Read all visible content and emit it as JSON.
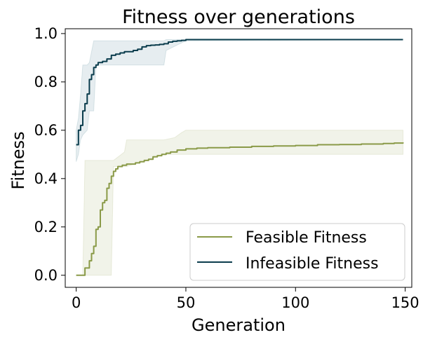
{
  "chart_data": {
    "type": "line",
    "title": "Fitness over generations",
    "xlabel": "Generation",
    "ylabel": "Fitness",
    "xlim": [
      -5,
      153
    ],
    "ylim": [
      -0.05,
      1.02
    ],
    "xticks": [
      0,
      50,
      100,
      150
    ],
    "yticks": [
      0.0,
      0.2,
      0.4,
      0.6,
      0.8,
      1.0
    ],
    "xtick_labels": [
      "0",
      "50",
      "100",
      "150"
    ],
    "ytick_labels": [
      "0.0",
      "0.2",
      "0.4",
      "0.6",
      "0.8",
      "1.0"
    ],
    "grid": false,
    "legend_position": "lower-right",
    "series": [
      {
        "name": "Feasible Fitness",
        "color": "#8a9a48",
        "band_color": "#8a9a48",
        "points": [
          [
            0,
            0
          ],
          [
            3,
            0
          ],
          [
            4,
            0.03
          ],
          [
            5,
            0.03
          ],
          [
            6,
            0.06
          ],
          [
            7,
            0.09
          ],
          [
            8,
            0.12
          ],
          [
            9,
            0.19
          ],
          [
            10,
            0.2
          ],
          [
            11,
            0.27
          ],
          [
            12,
            0.3
          ],
          [
            13,
            0.31
          ],
          [
            14,
            0.36
          ],
          [
            15,
            0.38
          ],
          [
            16,
            0.41
          ],
          [
            17,
            0.43
          ],
          [
            18,
            0.44
          ],
          [
            19,
            0.45
          ],
          [
            21,
            0.455
          ],
          [
            23,
            0.46
          ],
          [
            25,
            0.46
          ],
          [
            27,
            0.465
          ],
          [
            29,
            0.47
          ],
          [
            31,
            0.475
          ],
          [
            33,
            0.48
          ],
          [
            35,
            0.49
          ],
          [
            37,
            0.495
          ],
          [
            39,
            0.5
          ],
          [
            41,
            0.505
          ],
          [
            43,
            0.51
          ],
          [
            46,
            0.518
          ],
          [
            50,
            0.523
          ],
          [
            55,
            0.526
          ],
          [
            60,
            0.528
          ],
          [
            70,
            0.53
          ],
          [
            80,
            0.533
          ],
          [
            90,
            0.535
          ],
          [
            100,
            0.537
          ],
          [
            110,
            0.54
          ],
          [
            120,
            0.541
          ],
          [
            130,
            0.543
          ],
          [
            140,
            0.545
          ],
          [
            145,
            0.547
          ],
          [
            149,
            0.55
          ]
        ],
        "band": [
          [
            0,
            0,
            0
          ],
          [
            3,
            0,
            0
          ],
          [
            4,
            0,
            0.475
          ],
          [
            16,
            0,
            0.475
          ],
          [
            17,
            0.45,
            0.475
          ],
          [
            22,
            0.45,
            0.51
          ],
          [
            23,
            0.45,
            0.56
          ],
          [
            40,
            0.5,
            0.56
          ],
          [
            45,
            0.5,
            0.57
          ],
          [
            48,
            0.5,
            0.59
          ],
          [
            50,
            0.5,
            0.6
          ],
          [
            149,
            0.5,
            0.6
          ]
        ]
      },
      {
        "name": "Infeasible Fitness",
        "color": "#0b3d4d",
        "band_color": "#2f6f80",
        "points": [
          [
            0,
            0.54
          ],
          [
            1,
            0.6
          ],
          [
            2,
            0.62
          ],
          [
            3,
            0.68
          ],
          [
            4,
            0.71
          ],
          [
            5,
            0.75
          ],
          [
            6,
            0.81
          ],
          [
            7,
            0.83
          ],
          [
            8,
            0.86
          ],
          [
            9,
            0.87
          ],
          [
            10,
            0.88
          ],
          [
            12,
            0.885
          ],
          [
            14,
            0.895
          ],
          [
            16,
            0.91
          ],
          [
            18,
            0.915
          ],
          [
            20,
            0.92
          ],
          [
            22,
            0.925
          ],
          [
            24,
            0.925
          ],
          [
            26,
            0.93
          ],
          [
            28,
            0.935
          ],
          [
            30,
            0.945
          ],
          [
            32,
            0.95
          ],
          [
            34,
            0.952
          ],
          [
            36,
            0.953
          ],
          [
            38,
            0.955
          ],
          [
            40,
            0.958
          ],
          [
            42,
            0.965
          ],
          [
            44,
            0.968
          ],
          [
            46,
            0.97
          ],
          [
            48,
            0.972
          ],
          [
            50,
            0.975
          ],
          [
            55,
            0.975
          ],
          [
            60,
            0.975
          ],
          [
            80,
            0.975
          ],
          [
            100,
            0.975
          ],
          [
            120,
            0.975
          ],
          [
            140,
            0.975
          ],
          [
            149,
            0.975
          ]
        ],
        "band": [
          [
            0,
            0.47,
            0.6
          ],
          [
            1,
            0.5,
            0.65
          ],
          [
            2,
            0.56,
            0.75
          ],
          [
            3,
            0.58,
            0.87
          ],
          [
            5,
            0.6,
            0.87
          ],
          [
            6,
            0.68,
            0.88
          ],
          [
            8,
            0.68,
            0.97
          ],
          [
            9,
            0.87,
            0.97
          ],
          [
            40,
            0.87,
            0.97
          ],
          [
            41,
            0.93,
            0.975
          ],
          [
            50,
            0.97,
            0.975
          ],
          [
            149,
            0.975,
            0.975
          ]
        ]
      }
    ]
  }
}
